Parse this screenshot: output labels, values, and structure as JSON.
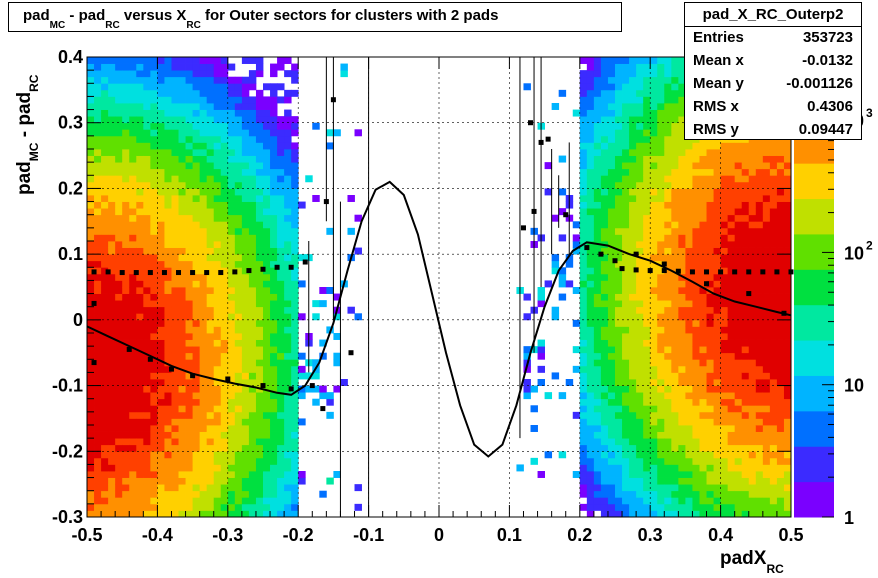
{
  "title": {
    "parts": [
      "pad",
      "MC",
      " - pad",
      "RC",
      " versus X",
      "RC",
      " for Outer sectors for clusters with 2 pads"
    ]
  },
  "stats": {
    "name": "pad_X_RC_Outerp2",
    "rows": [
      {
        "key": "Entries",
        "value": "353723"
      },
      {
        "key": "Mean x",
        "value": "-0.0132"
      },
      {
        "key": "Mean y",
        "value": "-0.001126"
      },
      {
        "key": "RMS x",
        "value": "0.4306"
      },
      {
        "key": "RMS y",
        "value": "0.09447"
      }
    ]
  },
  "axes": {
    "ylabel_parts": [
      "pad",
      "MC",
      " - pad",
      "RC"
    ],
    "xlabel_parts": [
      "padX",
      "RC"
    ]
  },
  "chart_data": {
    "type": "heatmap",
    "xlim": [
      -0.5,
      0.5
    ],
    "ylim": [
      -0.3,
      0.4
    ],
    "x_ticks": [
      "-0.5",
      "-0.4",
      "-0.3",
      "-0.2",
      "-0.1",
      "0",
      "0.1",
      "0.2",
      "0.3",
      "0.4",
      "0.5"
    ],
    "y_ticks": [
      "-0.3",
      "-0.2",
      "-0.1",
      "0",
      "0.1",
      "0.2",
      "0.3",
      "0.4"
    ],
    "z_scale": "log",
    "z_range": [
      1,
      3000
    ],
    "colorbar_ticks": [
      "1",
      "10",
      "10",
      "10"
    ],
    "colorbar_exponents": [
      "",
      "",
      "2",
      "3"
    ],
    "palette": [
      "#7a00ff",
      "#3b2bff",
      "#0070ff",
      "#00b4ff",
      "#00e0e0",
      "#00e8a0",
      "#00e040",
      "#60e000",
      "#c0e000",
      "#ffd000",
      "#ff9000",
      "#ff4000",
      "#e00000"
    ],
    "fit_curve": {
      "x": [
        -0.5,
        -0.47,
        -0.44,
        -0.41,
        -0.38,
        -0.35,
        -0.32,
        -0.29,
        -0.26,
        -0.23,
        -0.21,
        -0.19,
        -0.17,
        -0.15,
        -0.13,
        -0.11,
        -0.09,
        -0.07,
        -0.05,
        -0.03,
        -0.01,
        0.01,
        0.03,
        0.05,
        0.07,
        0.09,
        0.11,
        0.13,
        0.15,
        0.17,
        0.19,
        0.21,
        0.24,
        0.27,
        0.3,
        0.33,
        0.36,
        0.39,
        0.42,
        0.45,
        0.48,
        0.5
      ],
      "y": [
        -0.01,
        -0.025,
        -0.04,
        -0.055,
        -0.07,
        -0.082,
        -0.09,
        -0.097,
        -0.103,
        -0.111,
        -0.114,
        -0.1,
        -0.065,
        -0.005,
        0.075,
        0.15,
        0.198,
        0.21,
        0.19,
        0.13,
        0.04,
        -0.05,
        -0.13,
        -0.19,
        -0.208,
        -0.19,
        -0.13,
        -0.05,
        0.02,
        0.075,
        0.105,
        0.118,
        0.113,
        0.1,
        0.09,
        0.075,
        0.058,
        0.04,
        0.028,
        0.02,
        0.012,
        0.007
      ]
    },
    "profile_upper": {
      "x": [
        -0.49,
        -0.47,
        -0.45,
        -0.43,
        -0.41,
        -0.39,
        -0.37,
        -0.35,
        -0.33,
        -0.31,
        -0.29,
        -0.27,
        -0.25,
        -0.23,
        -0.21,
        -0.19,
        0.26,
        0.28,
        0.3,
        0.32,
        0.34,
        0.36,
        0.38,
        0.4,
        0.42,
        0.44,
        0.46,
        0.48,
        0.5
      ],
      "y": [
        0.073,
        0.073,
        0.072,
        0.072,
        0.072,
        0.072,
        0.072,
        0.072,
        0.072,
        0.072,
        0.073,
        0.075,
        0.077,
        0.08,
        0.08,
        0.088,
        0.078,
        0.076,
        0.075,
        0.075,
        0.074,
        0.073,
        0.073,
        0.073,
        0.073,
        0.073,
        0.073,
        0.073,
        0.073
      ]
    },
    "profile_points": {
      "x": [
        -0.49,
        -0.49,
        -0.44,
        -0.41,
        -0.38,
        -0.35,
        -0.3,
        -0.25,
        -0.21,
        -0.18,
        -0.165,
        -0.16,
        -0.15,
        -0.125,
        0.12,
        0.13,
        0.135,
        0.145,
        0.155,
        0.18,
        0.21,
        0.23,
        0.25,
        0.28,
        0.32,
        0.38,
        0.44,
        0.49
      ],
      "y": [
        0.025,
        -0.065,
        -0.045,
        -0.06,
        -0.075,
        -0.085,
        -0.09,
        -0.1,
        -0.105,
        -0.1,
        -0.135,
        0.18,
        0.335,
        -0.05,
        0.14,
        0.3,
        0.165,
        0.27,
        0.275,
        0.16,
        0.11,
        0.1,
        0.09,
        0.1,
        0.085,
        0.055,
        0.04,
        0.01
      ]
    }
  }
}
